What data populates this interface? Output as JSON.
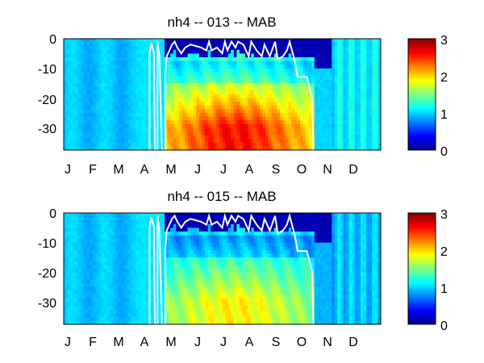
{
  "chart_data": [
    {
      "type": "heatmap",
      "title": "nh4 -- 013 -- MAB",
      "x_tick_labels": [
        "J",
        "F",
        "M",
        "A",
        "M",
        "J",
        "J",
        "A",
        "S",
        "O",
        "N",
        "D"
      ],
      "y_tick_labels": [
        "0",
        "-10",
        "-20",
        "-30"
      ],
      "y_ticks": [
        0,
        -10,
        -20,
        -30
      ],
      "ylim": [
        -38,
        0
      ],
      "xlim_months": [
        0,
        12
      ],
      "colorbar": {
        "ticks": [
          "0",
          "1",
          "2",
          "3"
        ],
        "range": [
          0,
          3
        ],
        "colormap": "jet"
      },
      "surface_line_color": "#ffffff",
      "peak_value_approx": 2.6,
      "boundary_line": [
        [
          3.25,
          -38
        ],
        [
          3.25,
          -5
        ],
        [
          3.32,
          -1.5
        ],
        [
          3.42,
          -5
        ],
        [
          3.45,
          -38
        ],
        [
          3.55,
          -38
        ],
        [
          3.55,
          -1
        ],
        [
          3.62,
          -6
        ],
        [
          3.72,
          -38
        ],
        [
          3.85,
          -38
        ],
        [
          3.85,
          -12
        ],
        [
          3.9,
          -6
        ],
        [
          4.0,
          -4
        ],
        [
          4.1,
          -2
        ],
        [
          4.2,
          -1
        ],
        [
          4.3,
          -3
        ],
        [
          4.45,
          -5
        ],
        [
          4.6,
          -3
        ],
        [
          4.8,
          -2
        ],
        [
          5.0,
          -2.5
        ],
        [
          5.2,
          -3
        ],
        [
          5.4,
          -4
        ],
        [
          5.5,
          -1
        ],
        [
          5.6,
          -4
        ],
        [
          5.8,
          -3
        ],
        [
          6.0,
          -5
        ],
        [
          6.1,
          -1
        ],
        [
          6.2,
          -4
        ],
        [
          6.35,
          -1
        ],
        [
          6.5,
          -3
        ],
        [
          6.6,
          -1
        ],
        [
          6.8,
          -2
        ],
        [
          7.0,
          -6
        ],
        [
          7.1,
          -1
        ],
        [
          7.3,
          -4
        ],
        [
          7.5,
          -6
        ],
        [
          7.6,
          -2
        ],
        [
          7.8,
          -6
        ],
        [
          8.0,
          -1
        ],
        [
          8.1,
          -7
        ],
        [
          8.3,
          -6
        ],
        [
          8.45,
          -4
        ],
        [
          8.55,
          -1
        ],
        [
          8.7,
          -6
        ],
        [
          8.8,
          -10
        ],
        [
          8.85,
          -13
        ],
        [
          9.2,
          -13
        ],
        [
          9.4,
          -20
        ],
        [
          9.45,
          -38
        ]
      ]
    },
    {
      "type": "heatmap",
      "title": "nh4 -- 015 -- MAB",
      "x_tick_labels": [
        "J",
        "F",
        "M",
        "A",
        "M",
        "J",
        "J",
        "A",
        "S",
        "O",
        "N",
        "D"
      ],
      "y_tick_labels": [
        "0",
        "-10",
        "-20",
        "-30"
      ],
      "y_ticks": [
        0,
        -10,
        -20,
        -30
      ],
      "ylim": [
        -38,
        0
      ],
      "xlim_months": [
        0,
        12
      ],
      "colorbar": {
        "ticks": [
          "0",
          "1",
          "2",
          "3"
        ],
        "range": [
          0,
          3
        ],
        "colormap": "jet"
      },
      "surface_line_color": "#ffffff",
      "peak_value_approx": 1.9,
      "boundary_line": [
        [
          3.25,
          -38
        ],
        [
          3.25,
          -5
        ],
        [
          3.32,
          -1.5
        ],
        [
          3.42,
          -5
        ],
        [
          3.45,
          -38
        ],
        [
          3.55,
          -38
        ],
        [
          3.55,
          -1
        ],
        [
          3.62,
          -6
        ],
        [
          3.72,
          -38
        ],
        [
          3.85,
          -38
        ],
        [
          3.85,
          -12
        ],
        [
          3.9,
          -6
        ],
        [
          4.0,
          -4
        ],
        [
          4.1,
          -2
        ],
        [
          4.2,
          -1
        ],
        [
          4.3,
          -3
        ],
        [
          4.45,
          -5
        ],
        [
          4.6,
          -3
        ],
        [
          4.8,
          -2
        ],
        [
          5.0,
          -2.5
        ],
        [
          5.2,
          -3
        ],
        [
          5.4,
          -4
        ],
        [
          5.5,
          -1
        ],
        [
          5.6,
          -4
        ],
        [
          5.8,
          -3
        ],
        [
          6.0,
          -5
        ],
        [
          6.1,
          -1
        ],
        [
          6.2,
          -4
        ],
        [
          6.35,
          -1
        ],
        [
          6.5,
          -3
        ],
        [
          6.6,
          -1
        ],
        [
          6.8,
          -2
        ],
        [
          7.0,
          -6
        ],
        [
          7.1,
          -1
        ],
        [
          7.3,
          -4
        ],
        [
          7.5,
          -6
        ],
        [
          7.6,
          -2
        ],
        [
          7.8,
          -6
        ],
        [
          8.0,
          -1
        ],
        [
          8.1,
          -7
        ],
        [
          8.3,
          -6
        ],
        [
          8.45,
          -4
        ],
        [
          8.55,
          -1
        ],
        [
          8.7,
          -6
        ],
        [
          8.8,
          -10
        ],
        [
          8.85,
          -13
        ],
        [
          9.2,
          -13
        ],
        [
          9.4,
          -20
        ],
        [
          9.45,
          -38
        ]
      ]
    }
  ]
}
